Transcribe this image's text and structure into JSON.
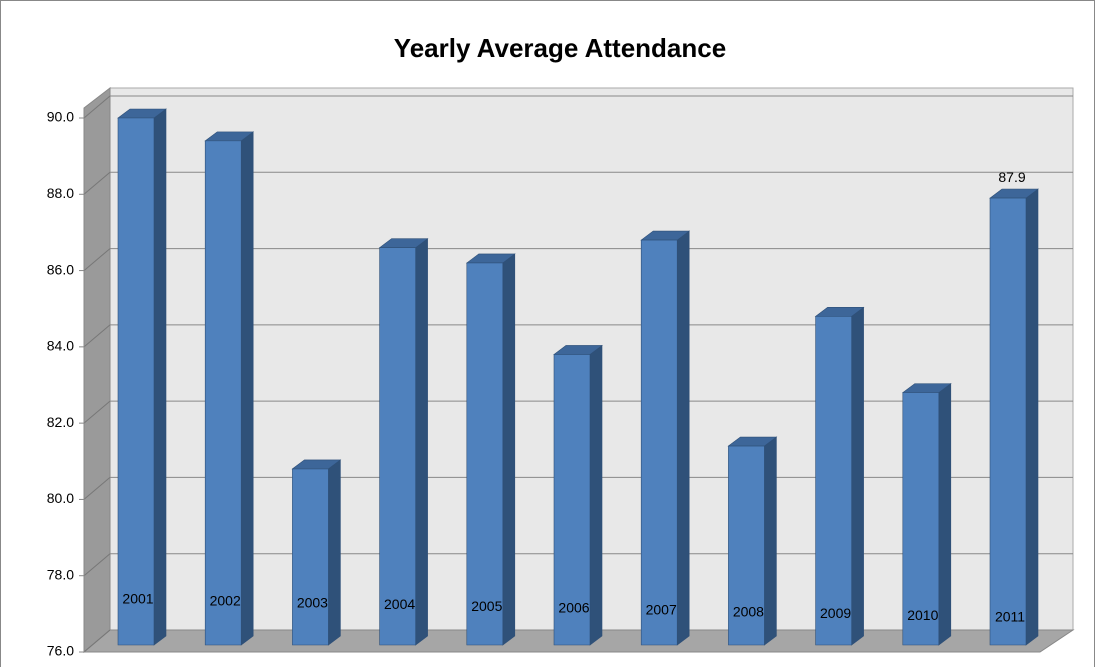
{
  "chart_data": {
    "type": "bar3d",
    "title": "Yearly Average Attendance",
    "categories": [
      "2001",
      "2002",
      "2003",
      "2004",
      "2005",
      "2006",
      "2007",
      "2008",
      "2009",
      "2010",
      "2011"
    ],
    "values": [
      90.0,
      89.4,
      80.8,
      86.6,
      86.2,
      83.8,
      86.8,
      81.4,
      84.8,
      82.8,
      87.9
    ],
    "show_value_label": [
      false,
      false,
      false,
      false,
      false,
      false,
      false,
      false,
      false,
      false,
      true
    ],
    "color": "#4f81bd",
    "ylim": [
      76,
      90
    ],
    "yticks": [
      {
        "value": 76,
        "label": "76.0"
      },
      {
        "value": 78,
        "label": "78.0"
      },
      {
        "value": 80,
        "label": "80.0"
      },
      {
        "value": 82,
        "label": "82.0"
      },
      {
        "value": 84,
        "label": "84.0"
      },
      {
        "value": 86,
        "label": "86.0"
      },
      {
        "value": 88,
        "label": "88.0"
      },
      {
        "value": 90,
        "label": "90.0"
      }
    ],
    "grid": true
  }
}
